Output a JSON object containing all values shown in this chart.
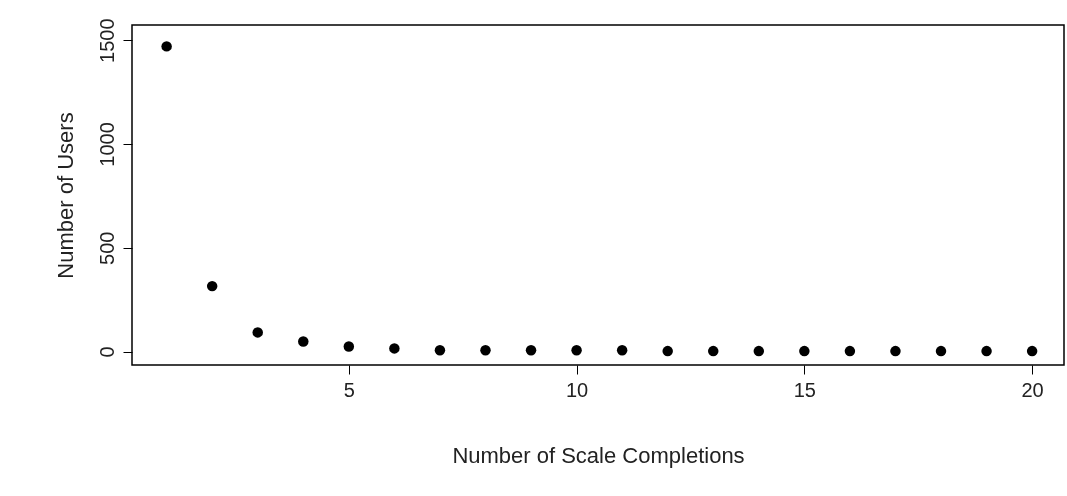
{
  "chart_data": {
    "type": "scatter",
    "xlabel": "Number of Scale Completions",
    "ylabel": "Number of Users",
    "x": [
      1,
      2,
      3,
      4,
      5,
      6,
      7,
      8,
      9,
      10,
      11,
      12,
      13,
      14,
      15,
      16,
      17,
      18,
      19,
      20
    ],
    "values": [
      1470,
      315,
      92,
      48,
      24,
      15,
      6,
      6,
      6,
      6,
      6,
      2,
      2,
      2,
      2,
      2,
      2,
      2,
      2,
      2
    ],
    "color": "#000000",
    "marker": "circle",
    "xlim": [
      0.24,
      20.7
    ],
    "ylim": [
      -65,
      1573
    ],
    "xticks": [
      5,
      10,
      15,
      20
    ],
    "yticks": [
      0,
      500,
      1000,
      1500
    ],
    "grid": false
  }
}
